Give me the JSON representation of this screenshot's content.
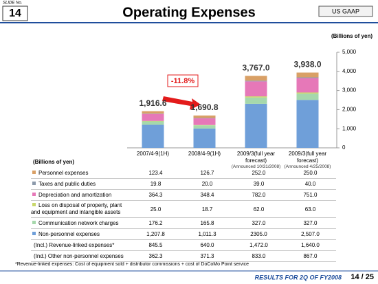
{
  "slide": {
    "slide_no_label": "SLIDE No.",
    "slide_no": "14",
    "title": "Operating Expenses",
    "badge": "US GAAP"
  },
  "chart_data": {
    "type": "stacked_bar",
    "y_axis_label": "(Billions of yen)",
    "categories": [
      "2007/4-9(1H)",
      "2008/4-9(1H)",
      "2009/3(full year forecast)",
      "2009/3(full year forecast)"
    ],
    "category_notes": [
      null,
      null,
      "(Announced 10/31/2008)",
      "(Announced 4/25/2008)"
    ],
    "series": [
      {
        "name": "Personnel expenses",
        "color": "#d9a066",
        "values": [
          123.4,
          126.7,
          252.0,
          250.0
        ],
        "value_labels": [
          "123.4",
          "126.7",
          "252.0",
          "250.0"
        ]
      },
      {
        "name": "Taxes and public duties",
        "color": "#8c9aab",
        "values": [
          19.8,
          20.0,
          39.0,
          40.0
        ],
        "value_labels": [
          "19.8",
          "20.0",
          "39.0",
          "40.0"
        ]
      },
      {
        "name": "Depreciation and amortization",
        "color": "#e678b8",
        "values": [
          364.3,
          348.4,
          782.0,
          751.0
        ],
        "value_labels": [
          "364.3",
          "348.4",
          "782.0",
          "751.0"
        ]
      },
      {
        "name": "Loss on disposal of property, plant and equipment and intangible assets",
        "color": "#c9d86c",
        "values": [
          25.0,
          18.7,
          62.0,
          63.0
        ],
        "value_labels": [
          "25.0",
          "18.7",
          "62.0",
          "63.0"
        ]
      },
      {
        "name": "Communication network charges",
        "color": "#a6d8ac",
        "values": [
          176.2,
          165.8,
          327.0,
          327.0
        ],
        "value_labels": [
          "176.2",
          "165.8",
          "327.0",
          "327.0"
        ]
      },
      {
        "name": "Non-personnel expenses",
        "color": "#6f9fd9",
        "values": [
          1207.8,
          1011.3,
          2305.0,
          2507.0
        ],
        "value_labels": [
          "1,207.8",
          "1,011.3",
          "2305.0",
          "2,507.0"
        ]
      }
    ],
    "totals": [
      1916.6,
      1690.8,
      3767.0,
      3938.0
    ],
    "total_labels": [
      "1,916.6",
      "1,690.8",
      "3,767.0",
      "3,938.0"
    ],
    "change_annotation": "-11.8%",
    "ylim": [
      0,
      5000
    ],
    "yticks": [
      0,
      {
        "value": 1000,
        "label": "1,000"
      },
      {
        "value": 2000,
        "label": "2,000"
      },
      {
        "value": 3000,
        "label": "3,000"
      },
      {
        "value": 4000,
        "label": "4,000"
      },
      {
        "value": 5000,
        "label": "5,000"
      }
    ]
  },
  "table": {
    "unit_label": "(Billions of yen)",
    "extra_rows": [
      {
        "label": "(Incl.) Revenue-linked expenses*",
        "values": [
          "845.5",
          "640.0",
          "1,472.0",
          "1,640.0"
        ]
      },
      {
        "label": "(Ind.) Other non-personnel expenses",
        "values": [
          "362.3",
          "371.3",
          "833.0",
          "867.0"
        ]
      }
    ]
  },
  "footnote": "*Revenue-linked expenses: Cost of equipment sold + distributor commissions + cost of DoCoMo Point service",
  "footer": {
    "text": "RESULTS FOR 2Q OF FY2008",
    "page": "14 / 25"
  }
}
